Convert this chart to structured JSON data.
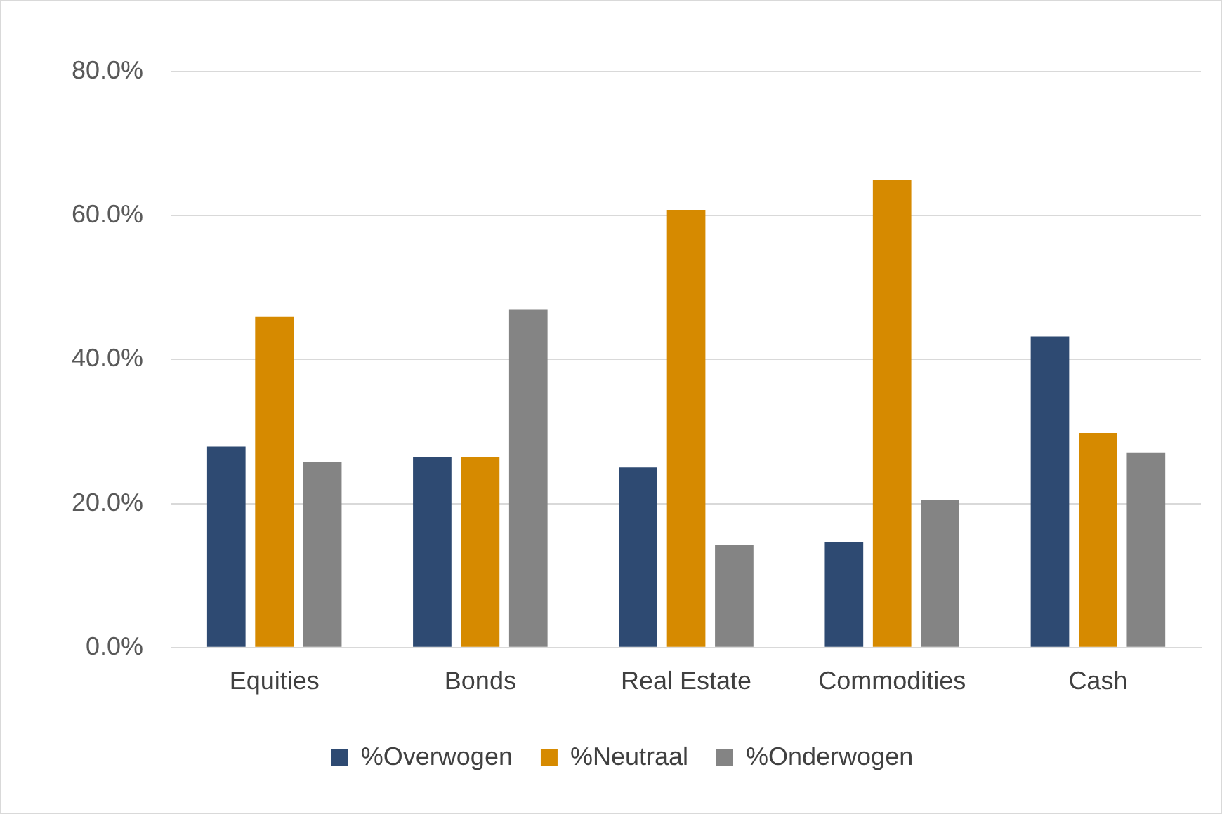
{
  "chart_data": {
    "type": "bar",
    "categories": [
      "Equities",
      "Bonds",
      "Real Estate",
      "Commodities",
      "Cash"
    ],
    "series": [
      {
        "name": "%Overwogen",
        "color": "#2e4a72",
        "values": [
          27.9,
          26.5,
          25.0,
          14.7,
          43.2
        ]
      },
      {
        "name": "%Neutraal",
        "color": "#d68a00",
        "values": [
          45.9,
          26.5,
          60.8,
          64.9,
          29.8
        ]
      },
      {
        "name": "%Onderwogen",
        "color": "#848484",
        "values": [
          25.8,
          46.9,
          14.3,
          20.5,
          27.1
        ]
      }
    ],
    "ylim": [
      0,
      80
    ],
    "yticks": [
      {
        "value": 0,
        "label": "0.0%"
      },
      {
        "value": 20,
        "label": "20.0%"
      },
      {
        "value": 40,
        "label": "40.0%"
      },
      {
        "value": 60,
        "label": "60.0%"
      },
      {
        "value": 80,
        "label": "80.0%"
      }
    ],
    "grid": "y",
    "legend": "bottom"
  }
}
